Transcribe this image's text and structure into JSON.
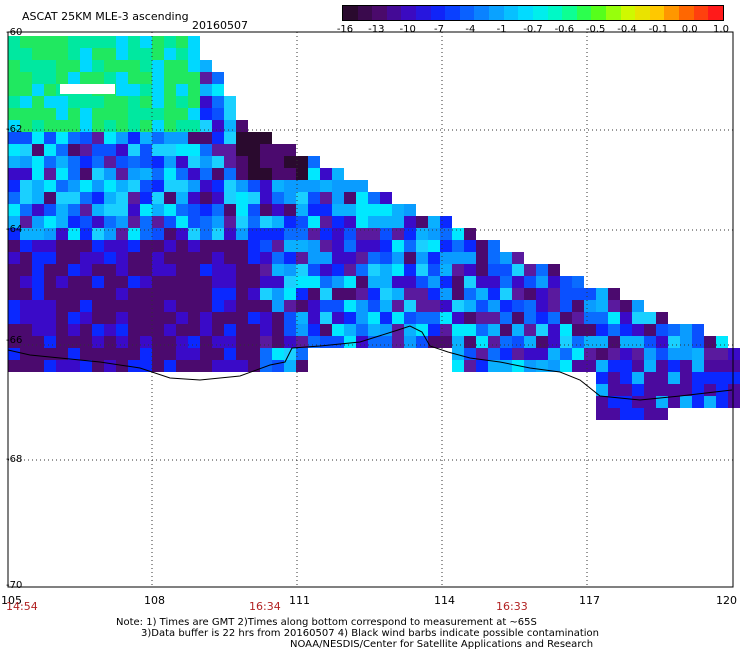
{
  "title": "ASCAT 25KM MLE-3 ascending",
  "date": "20160507",
  "colorbar": {
    "labels": [
      "-16",
      "-13",
      "-10",
      "-7",
      "-4",
      "-1",
      "-0.7",
      "-0.6",
      "-0.5",
      "-0.4",
      "-0.1",
      "0.0",
      "1.0"
    ],
    "colors": [
      "#2a0a2e",
      "#4b0a6e",
      "#3a0ac8",
      "#0a28ff",
      "#0a6cff",
      "#0ab0ff",
      "#00e8ff",
      "#00ffb0",
      "#40ff20",
      "#c8ff00",
      "#ffd000",
      "#ff6a00",
      "#ff1a1a"
    ]
  },
  "lat_labels": [
    "-60",
    "-62",
    "-64",
    "-66",
    "-68",
    "-70"
  ],
  "lon_labels": [
    "105",
    "108",
    "111",
    "114",
    "117",
    "120"
  ],
  "times": [
    "14:54",
    "16:34",
    "16:33"
  ],
  "notes": {
    "line1": "Note: 1) Times are GMT 2)Times along bottom correspond to measurement at ~65S",
    "line2": "3)Data buffer is 22 hrs from 20160507 4) Black wind barbs indicate possible contamination",
    "line3": "NOAA/NESDIS/Center for Satellite Applications and Research"
  }
}
